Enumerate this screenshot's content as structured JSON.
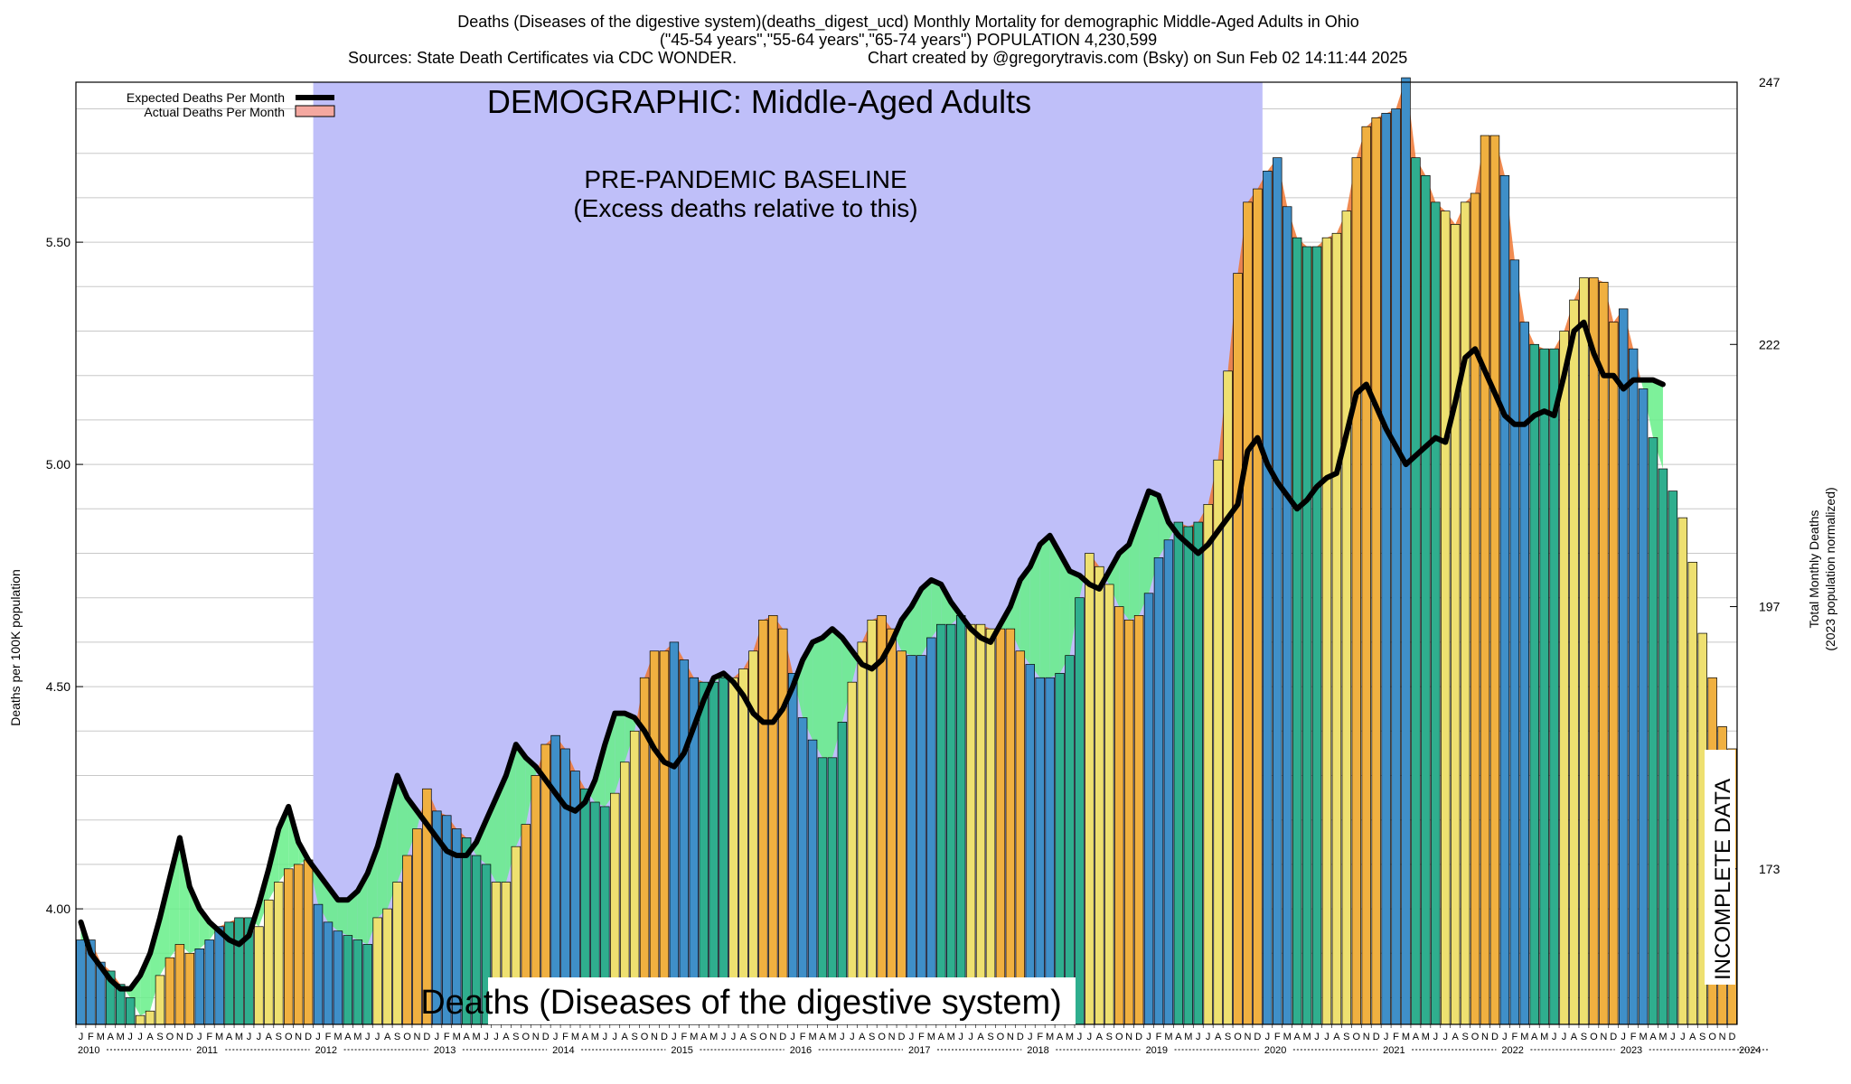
{
  "header": {
    "line1": "Deaths (Diseases of the digestive system)(deaths_digest_ucd) Monthly Mortality for demographic Middle-Aged Adults in Ohio",
    "line2": "(\"45-54 years\",\"55-64 years\",\"65-74 years\") POPULATION 4,230,599",
    "line3a": "Sources: State Death Certificates via CDC WONDER.",
    "line3b": "Chart created by @gregorytravis.com (Bsky) on Sun Feb 02 14:11:44 2025"
  },
  "colors": {
    "baseline_band": "#bfbff9",
    "excess_fill": "#ee7733",
    "deficit_fill": "#66ee88",
    "expected_line": "#000000",
    "bar_palette": [
      "#3f8fc8",
      "#2fae8e",
      "#eee070",
      "#f0b040"
    ]
  },
  "chart_data": {
    "type": "bar",
    "title": "DEMOGRAPHIC: Middle-Aged Adults",
    "watermark": "Deaths (Diseases of the digestive system)",
    "baseline_label_1": "PRE-PANDEMIC BASELINE",
    "baseline_label_2": "(Excess deaths relative to this)",
    "incomplete_label": "INCOMPLETE DATA",
    "ylabel_left": "Deaths per 100K population",
    "ylabel_right_1": "Total Monthly Deaths",
    "ylabel_right_2": "(2023 population normalized)",
    "legend": [
      {
        "label": "Expected Deaths Per Month",
        "type": "line",
        "color": "#000000"
      },
      {
        "label": "Actual Deaths Per Month",
        "type": "box",
        "color": "#f4a8a0"
      }
    ],
    "ylim": [
      3.74,
      5.86
    ],
    "yticks_left": [
      "4.00",
      "4.50",
      "5.00",
      "5.50"
    ],
    "yticks_left_values": [
      4.0,
      4.5,
      5.0,
      5.5
    ],
    "yticks_right": [
      "173",
      "197",
      "222",
      "247"
    ],
    "yticks_right_values": [
      4.09,
      4.68,
      5.27,
      5.86
    ],
    "baseline_period": [
      "2012-01",
      "2019-12"
    ],
    "incomplete_from": "2024-07",
    "month_letters": [
      "J",
      "F",
      "M",
      "A",
      "M",
      "J",
      "J",
      "A",
      "S",
      "O",
      "N",
      "D"
    ],
    "years": [
      "2010",
      "2011",
      "2012",
      "2013",
      "2014",
      "2015",
      "2016",
      "2017",
      "2018",
      "2019",
      "2020",
      "2021",
      "2022",
      "2023",
      "2024"
    ],
    "series": [
      {
        "name": "Actual Deaths Per Month",
        "start": "2010-01",
        "values": [
          3.93,
          3.93,
          3.88,
          3.86,
          3.83,
          3.8,
          3.76,
          3.77,
          3.85,
          3.89,
          3.92,
          3.9,
          3.91,
          3.93,
          3.96,
          3.97,
          3.98,
          3.98,
          3.96,
          4.02,
          4.06,
          4.09,
          4.1,
          4.11,
          4.01,
          3.97,
          3.95,
          3.94,
          3.93,
          3.92,
          3.98,
          4.0,
          4.06,
          4.12,
          4.18,
          4.27,
          4.22,
          4.21,
          4.18,
          4.16,
          4.12,
          4.1,
          4.06,
          4.06,
          4.14,
          4.19,
          4.3,
          4.37,
          4.39,
          4.36,
          4.31,
          4.27,
          4.24,
          4.23,
          4.26,
          4.33,
          4.4,
          4.52,
          4.58,
          4.58,
          4.6,
          4.56,
          4.52,
          4.51,
          4.51,
          4.52,
          4.52,
          4.54,
          4.58,
          4.65,
          4.66,
          4.63,
          4.53,
          4.43,
          4.38,
          4.34,
          4.34,
          4.42,
          4.51,
          4.6,
          4.65,
          4.66,
          4.63,
          4.58,
          4.57,
          4.57,
          4.61,
          4.64,
          4.64,
          4.66,
          4.64,
          4.64,
          4.63,
          4.63,
          4.63,
          4.58,
          4.55,
          4.52,
          4.52,
          4.53,
          4.57,
          4.7,
          4.8,
          4.77,
          4.73,
          4.68,
          4.65,
          4.66,
          4.71,
          4.79,
          4.83,
          4.87,
          4.86,
          4.87,
          4.91,
          5.01,
          5.21,
          5.43,
          5.59,
          5.62,
          5.66,
          5.69,
          5.58,
          5.51,
          5.49,
          5.49,
          5.51,
          5.52,
          5.57,
          5.69,
          5.76,
          5.78,
          5.79,
          5.8,
          5.87,
          5.69,
          5.65,
          5.59,
          5.57,
          5.54,
          5.59,
          5.61,
          5.74,
          5.74,
          5.65,
          5.46,
          5.32,
          5.27,
          5.26,
          5.26,
          5.3,
          5.37,
          5.42,
          5.42,
          5.41,
          5.32,
          5.35,
          5.26,
          5.17,
          5.06,
          4.99,
          4.94,
          4.88,
          4.78,
          4.62,
          4.52,
          4.41,
          4.36
        ]
      },
      {
        "name": "Expected Deaths Per Month",
        "start": "2010-01",
        "values": [
          3.97,
          3.9,
          3.87,
          3.84,
          3.82,
          3.82,
          3.85,
          3.9,
          3.98,
          4.07,
          4.16,
          4.05,
          4.0,
          3.97,
          3.95,
          3.93,
          3.92,
          3.94,
          4.01,
          4.09,
          4.18,
          4.23,
          4.15,
          4.11,
          4.08,
          4.05,
          4.02,
          4.02,
          4.04,
          4.08,
          4.14,
          4.22,
          4.3,
          4.25,
          4.22,
          4.19,
          4.16,
          4.13,
          4.12,
          4.12,
          4.15,
          4.2,
          4.25,
          4.3,
          4.37,
          4.34,
          4.32,
          4.29,
          4.26,
          4.23,
          4.22,
          4.24,
          4.29,
          4.37,
          4.44,
          4.44,
          4.43,
          4.4,
          4.36,
          4.33,
          4.32,
          4.35,
          4.41,
          4.47,
          4.52,
          4.53,
          4.51,
          4.48,
          4.44,
          4.42,
          4.42,
          4.45,
          4.5,
          4.56,
          4.6,
          4.61,
          4.63,
          4.61,
          4.58,
          4.55,
          4.54,
          4.56,
          4.6,
          4.65,
          4.68,
          4.72,
          4.74,
          4.73,
          4.69,
          4.66,
          4.63,
          4.61,
          4.6,
          4.64,
          4.68,
          4.74,
          4.77,
          4.82,
          4.84,
          4.8,
          4.76,
          4.75,
          4.73,
          4.72,
          4.76,
          4.8,
          4.82,
          4.88,
          4.94,
          4.93,
          4.87,
          4.84,
          4.82,
          4.8,
          4.82,
          4.85,
          4.88,
          4.91,
          5.03,
          5.06,
          5.0,
          4.96,
          4.93,
          4.9,
          4.92,
          4.95,
          4.97,
          4.98,
          5.07,
          5.16,
          5.18,
          5.13,
          5.08,
          5.04,
          5.0,
          5.02,
          5.04,
          5.06,
          5.05,
          5.14,
          5.24,
          5.26,
          5.21,
          5.16,
          5.11,
          5.09,
          5.09,
          5.11,
          5.12,
          5.11,
          5.2,
          5.3,
          5.32,
          5.25,
          5.2,
          5.2,
          5.17,
          5.19,
          5.19,
          5.19,
          5.18
        ]
      }
    ]
  }
}
